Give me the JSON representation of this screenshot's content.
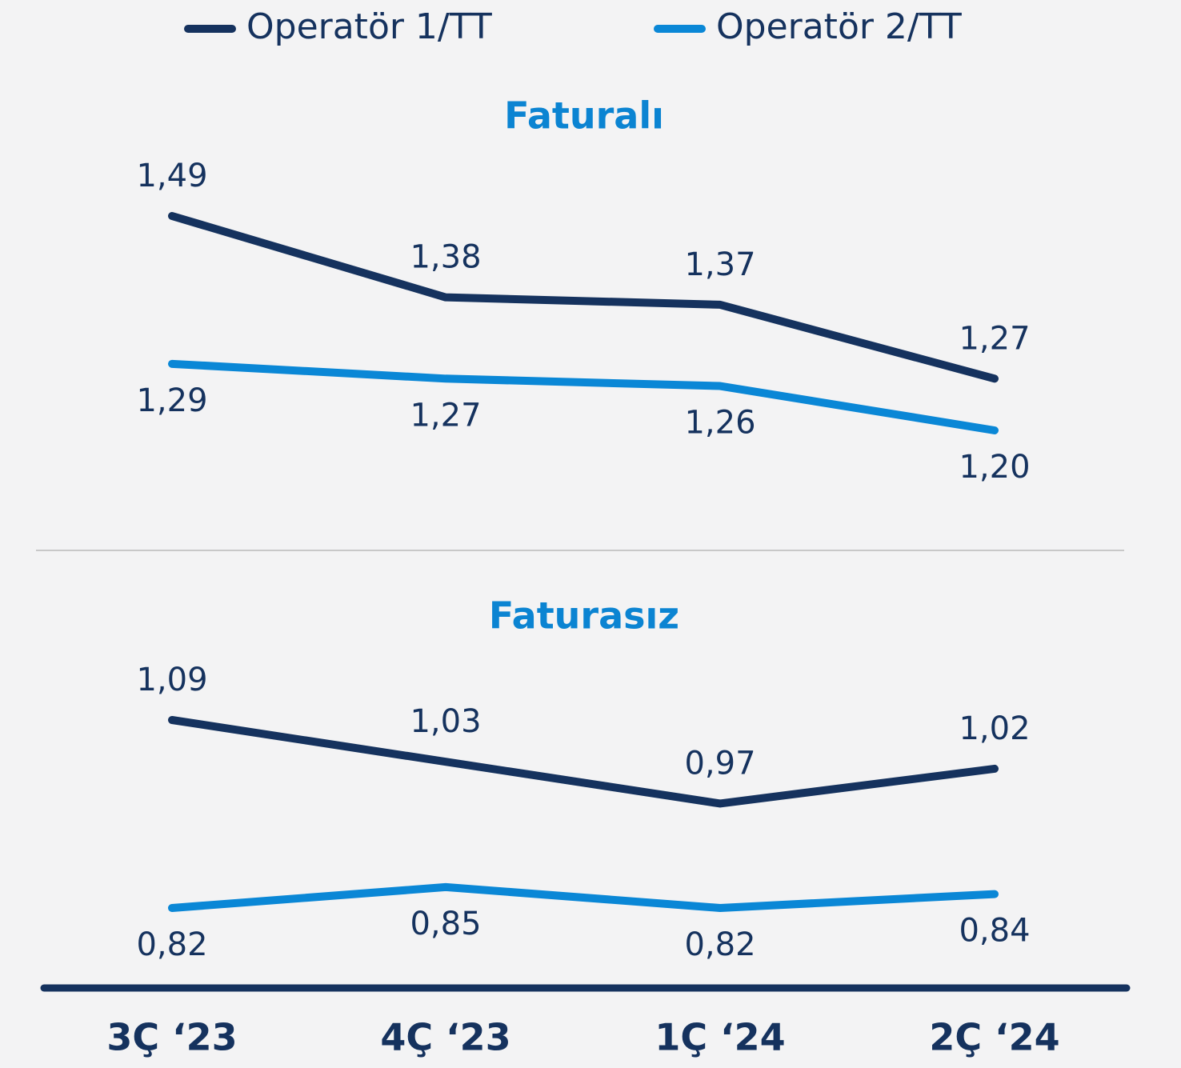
{
  "chart_data": [
    {
      "type": "line",
      "title": "Faturalı",
      "series": [
        {
          "name": "Operatör 1/TT",
          "color": "#15325e",
          "values": [
            1.49,
            1.38,
            1.37,
            1.27
          ],
          "value_labels": [
            "1,49",
            "1,38",
            "1,37",
            "1,27"
          ]
        },
        {
          "name": "Operatör 2/TT",
          "color": "#0a87d6",
          "values": [
            1.29,
            1.27,
            1.26,
            1.2
          ],
          "value_labels": [
            "1,29",
            "1,27",
            "1,26",
            "1,20"
          ]
        }
      ]
    },
    {
      "type": "line",
      "title": "Faturasız",
      "categories": [
        "3Ç ‘23",
        "4Ç ‘23",
        "1Ç ‘24",
        "2Ç ‘24"
      ],
      "series": [
        {
          "color": "#15325e",
          "values": [
            1.09,
            1.03,
            0.97,
            1.02
          ],
          "value_labels": [
            "1,09",
            "1,03",
            "0,97",
            "1,02"
          ]
        },
        {
          "color": "#0a87d6",
          "values": [
            0.82,
            0.85,
            0.82,
            0.84
          ],
          "value_labels": [
            "0,82",
            "0,85",
            "0,82",
            "0,84"
          ]
        }
      ]
    }
  ]
}
